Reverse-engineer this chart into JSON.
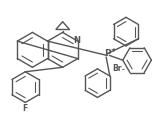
{
  "bg_color": "#ffffff",
  "line_color": "#555555",
  "line_width": 1.0,
  "figsize": [
    1.6,
    1.33
  ],
  "dpi": 100,
  "xlim": [
    0,
    10
  ],
  "ylim": [
    0,
    8.3
  ],
  "N_label": "N",
  "F_label": "F",
  "P_label": "P",
  "Br_label": "Br",
  "plus_label": "+",
  "minus_label": "-"
}
